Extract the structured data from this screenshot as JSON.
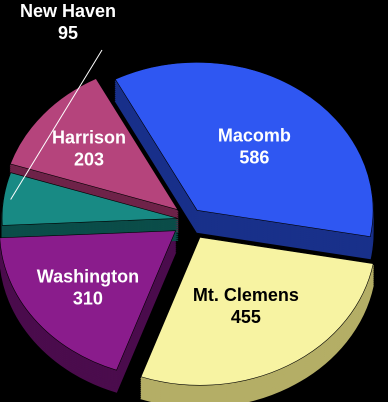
{
  "chart_data": {
    "type": "pie",
    "style": "3d-exploded",
    "background": "#000000",
    "title": "",
    "slices": [
      {
        "label": "Harrison",
        "value": 203,
        "color": "#b5447c",
        "side": "#6e2349",
        "text_color": "#ffffff"
      },
      {
        "label": "Macomb",
        "value": 586,
        "color": "#2f57f2",
        "side": "#19308a",
        "text_color": "#ffffff"
      },
      {
        "label": "Mt. Clemens",
        "value": 455,
        "color": "#f7f3a2",
        "side": "#b4ae66",
        "text_color": "#000000"
      },
      {
        "label": "Washington",
        "value": 310,
        "color": "#8a1c8c",
        "side": "#4b0c4d",
        "text_color": "#ffffff"
      },
      {
        "label": "New Haven",
        "value": 95,
        "color": "#188a84",
        "side": "#0b4d49",
        "text_color": "#ffffff"
      }
    ]
  }
}
